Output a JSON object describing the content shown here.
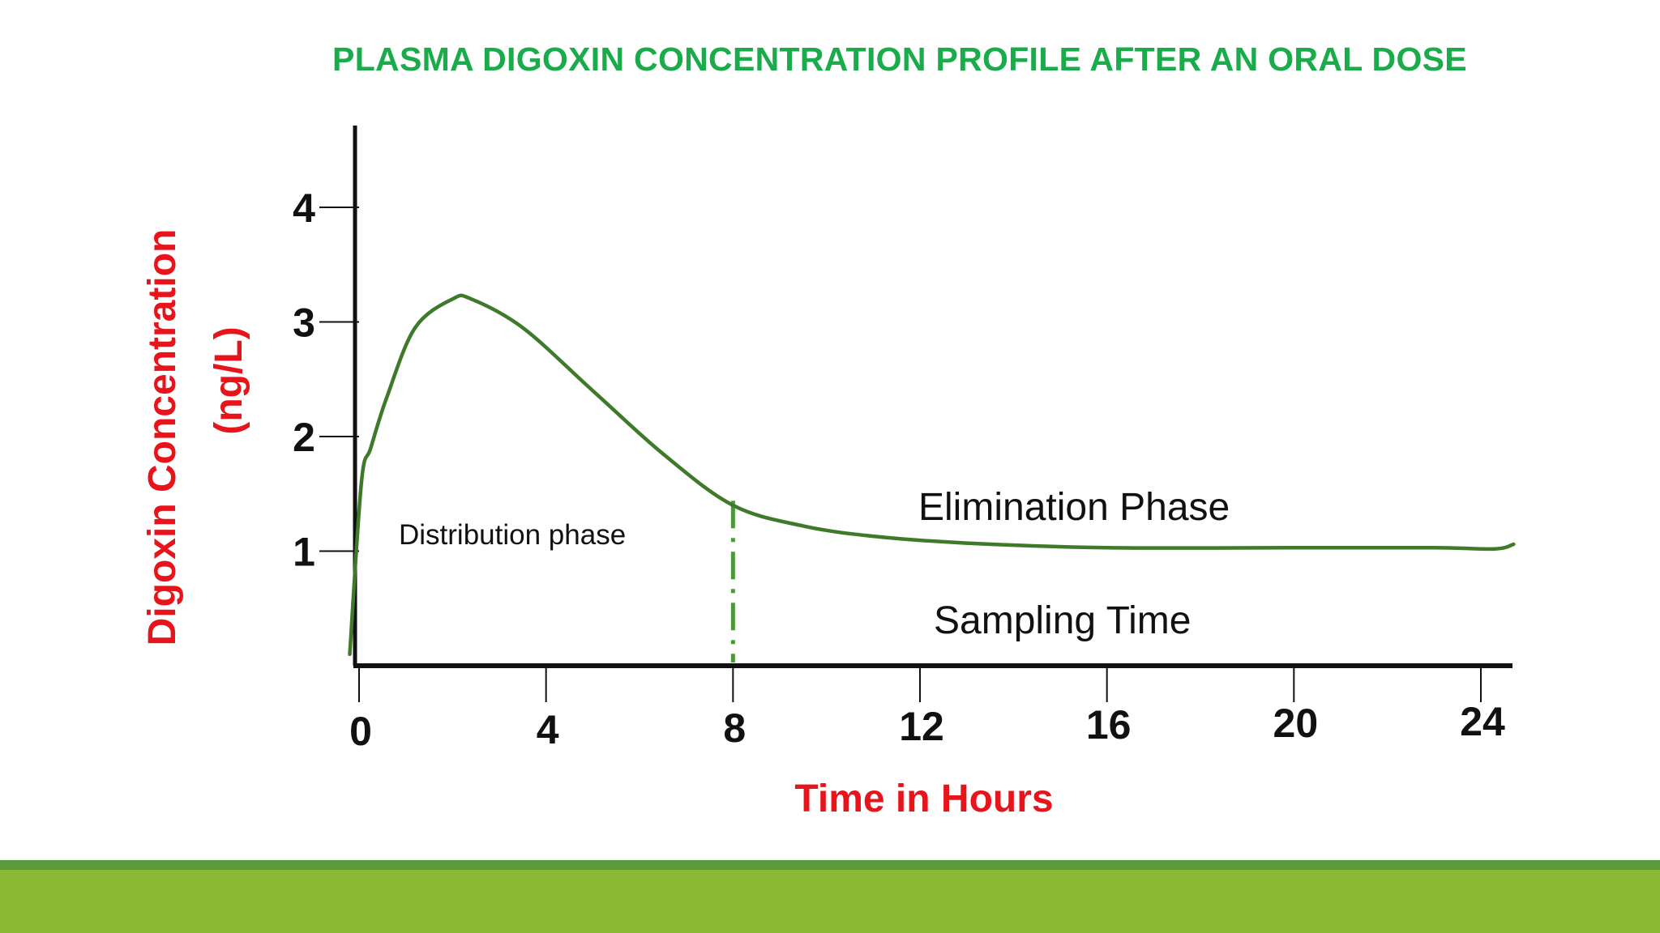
{
  "colors": {
    "title": "#1aab4a",
    "axis_label": "#e8141b",
    "curve": "#3f7a2a",
    "marker": "#4a9a3a",
    "axis": "#111111",
    "footer_line": "#5a9a3a",
    "footer_bar": "#8ab833"
  },
  "chart_data": {
    "type": "line",
    "title": "PLASMA DIGOXIN CONCENTRATION PROFILE AFTER AN ORAL DOSE",
    "xlabel": "Time in Hours",
    "ylabel": "Digoxin Concentration",
    "ylabel_unit": "(ng/L)",
    "xlim": [
      0,
      25
    ],
    "ylim": [
      0,
      4.7
    ],
    "x_ticks": [
      0,
      4,
      8,
      12,
      16,
      20,
      24
    ],
    "x_tick_labels": [
      "0",
      "4",
      "8",
      "12",
      "16",
      "20",
      "24"
    ],
    "y_ticks": [
      1,
      2,
      3,
      4
    ],
    "y_tick_labels": [
      "1",
      "2",
      "3",
      "4"
    ],
    "grid": false,
    "series": [
      {
        "name": "Plasma digoxin concentration",
        "x": [
          -0.2,
          0.05,
          0.25,
          0.6,
          1.2,
          2.0,
          2.4,
          3.5,
          5.0,
          6.5,
          8.0,
          9.5,
          11.0,
          13.0,
          16.0,
          20.0,
          23.0,
          24.3,
          24.7
        ],
        "y": [
          0.1,
          1.6,
          1.9,
          2.35,
          2.95,
          3.2,
          3.2,
          2.95,
          2.4,
          1.85,
          1.4,
          1.22,
          1.13,
          1.07,
          1.03,
          1.03,
          1.03,
          1.02,
          1.06
        ]
      }
    ],
    "sampling_time_marker": 8,
    "annotations": {
      "distribution": "Distribution phase",
      "elimination": "Elimination Phase",
      "sampling": "Sampling Time"
    }
  }
}
